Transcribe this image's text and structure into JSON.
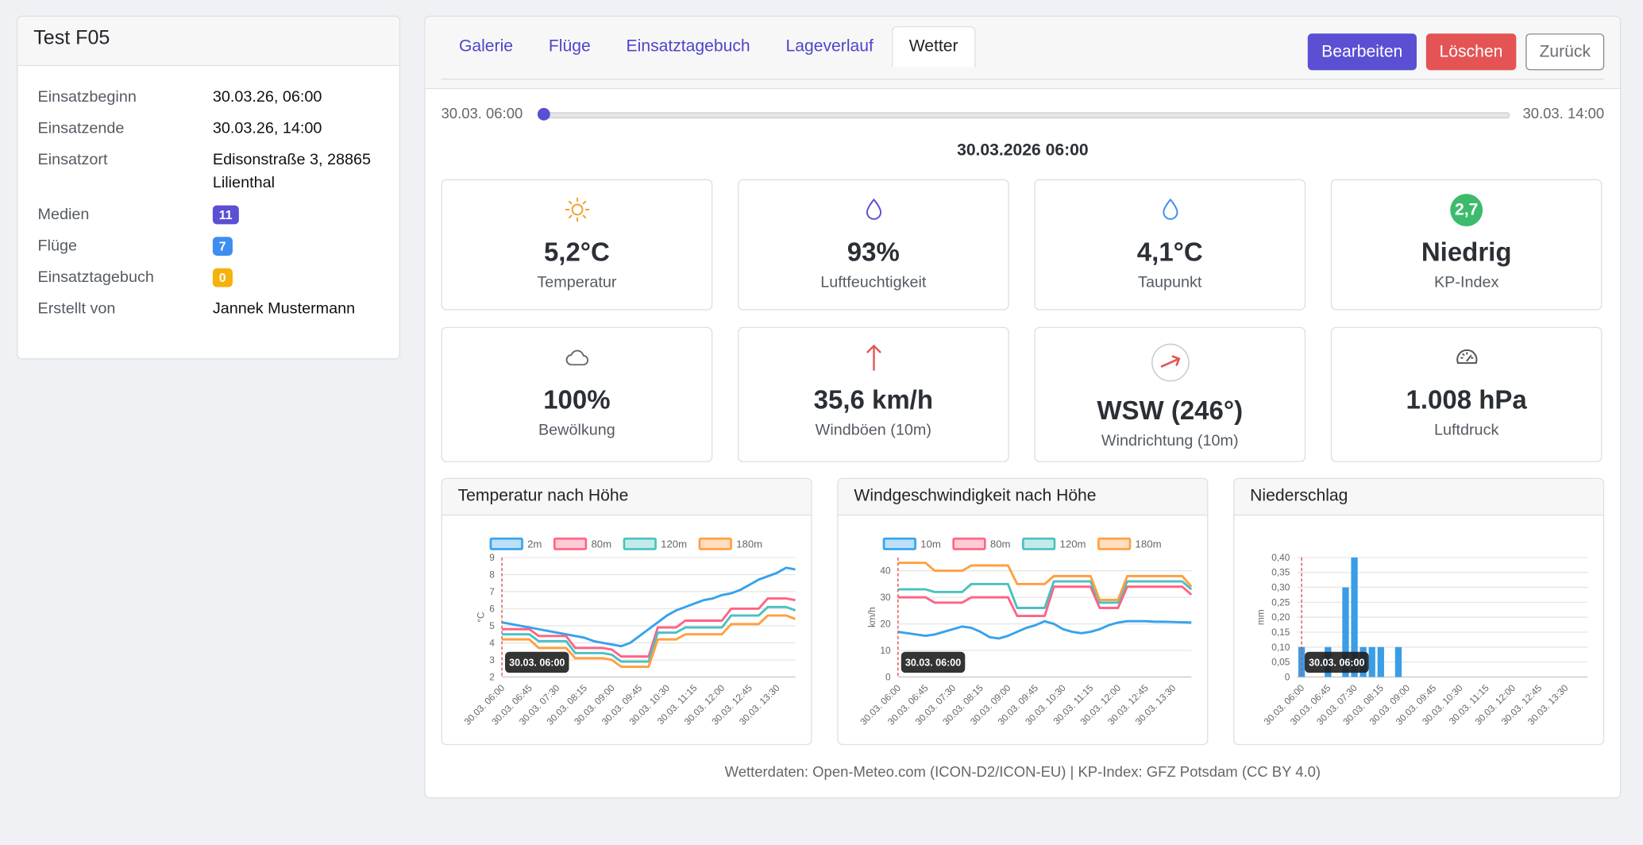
{
  "sidebar": {
    "title": "Test F05",
    "rows": [
      {
        "label": "Einsatzbeginn",
        "value": "30.03.26, 06:00"
      },
      {
        "label": "Einsatzende",
        "value": "30.03.26, 14:00"
      },
      {
        "label": "Einsatzort",
        "value": "Edisonstraße 3, 28865 Lilienthal"
      },
      {
        "label": "Medien",
        "value": 11,
        "badge": "#5b4fd4"
      },
      {
        "label": "Flüge",
        "value": 7,
        "badge": "#3d8ef0"
      },
      {
        "label": "Einsatztagebuch",
        "value": 0,
        "badge": "#f5b10c"
      },
      {
        "label": "Erstellt von",
        "value": "Jannek Mustermann"
      }
    ]
  },
  "tabs": {
    "items": [
      "Galerie",
      "Flüge",
      "Einsatztagebuch",
      "Lageverlauf",
      "Wetter"
    ],
    "active": 4
  },
  "buttons": [
    {
      "label": "Bearbeiten",
      "color": "#5b4fd4"
    },
    {
      "label": "Löschen",
      "color": "#e45454"
    },
    {
      "label": "Zurück"
    }
  ],
  "slider": {
    "start": "30.03. 06:00",
    "end": "30.03. 14:00"
  },
  "timestamp": "30.03.2026 06:00",
  "cards": [
    {
      "value": "5,2°C",
      "label": "Temperatur"
    },
    {
      "value": "93%",
      "label": "Luftfeuchtigkeit"
    },
    {
      "value": "4,1°C",
      "label": "Taupunkt"
    },
    {
      "badge": "2,7",
      "value": "Niedrig",
      "label": "KP-Index"
    },
    {
      "value": "100%",
      "label": "Bewölkung"
    },
    {
      "value": "35,6 km/h",
      "label": "Windböen (10m)"
    },
    {
      "value": "WSW (246°)",
      "label": "Windrichtung (10m)"
    },
    {
      "value": "1.008 hPa",
      "label": "Luftdruck"
    }
  ],
  "chart_data": [
    {
      "type": "line",
      "title": "Temperatur nach Höhe",
      "ylabel": "°C",
      "categories": [
        "30.03. 06:00",
        null,
        null,
        "30.03. 06:45",
        null,
        null,
        "30.03. 07:30",
        null,
        null,
        "30.03. 08:15",
        null,
        null,
        "30.03. 09:00",
        null,
        null,
        "30.03. 09:45",
        null,
        null,
        "30.03. 10:30",
        null,
        null,
        "30.03. 11:15",
        null,
        null,
        "30.03. 12:00",
        null,
        null,
        "30.03. 12:45",
        null,
        null,
        "30.03. 13:30",
        null,
        null
      ],
      "series": [
        {
          "name": "2m",
          "color": "#36a2eb",
          "values": [
            5.2,
            5.1,
            5.0,
            4.9,
            4.8,
            4.7,
            4.6,
            4.5,
            4.4,
            4.3,
            4.1,
            4.0,
            3.9,
            3.8,
            4.0,
            4.4,
            4.8,
            5.2,
            5.6,
            5.9,
            6.1,
            6.3,
            6.5,
            6.6,
            6.8,
            6.9,
            7.1,
            7.4,
            7.7,
            7.9,
            8.1,
            8.4,
            8.3
          ]
        },
        {
          "name": "80m",
          "color": "#ff6384",
          "values": [
            4.8,
            4.8,
            4.8,
            4.8,
            4.4,
            4.4,
            4.4,
            4.4,
            3.7,
            3.7,
            3.7,
            3.7,
            3.6,
            3.2,
            3.2,
            3.2,
            3.2,
            4.9,
            4.9,
            4.9,
            5.3,
            5.3,
            5.3,
            5.3,
            5.3,
            6.0,
            6.0,
            6.0,
            6.0,
            6.6,
            6.6,
            6.6,
            6.5
          ]
        },
        {
          "name": "120m",
          "color": "#4bc0c0",
          "values": [
            4.5,
            4.5,
            4.5,
            4.5,
            4.1,
            4.1,
            4.1,
            4.1,
            3.4,
            3.4,
            3.4,
            3.4,
            3.3,
            2.9,
            2.9,
            2.9,
            2.9,
            4.6,
            4.6,
            4.6,
            4.9,
            4.9,
            4.9,
            4.9,
            4.9,
            5.6,
            5.6,
            5.6,
            5.6,
            6.1,
            6.1,
            6.1,
            5.9
          ]
        },
        {
          "name": "180m",
          "color": "#ff9f40",
          "values": [
            4.2,
            4.2,
            4.2,
            4.2,
            3.7,
            3.7,
            3.7,
            3.7,
            3.1,
            3.1,
            3.1,
            3.1,
            3.0,
            2.6,
            2.6,
            2.6,
            2.6,
            4.2,
            4.2,
            4.2,
            4.5,
            4.5,
            4.5,
            4.5,
            4.5,
            5.1,
            5.1,
            5.1,
            5.1,
            5.6,
            5.6,
            5.6,
            5.4
          ]
        }
      ],
      "ylim": [
        2,
        9
      ],
      "yticks": [
        2,
        3,
        4,
        5,
        6,
        7,
        8,
        9
      ],
      "grid": true,
      "tooltip": "30.03. 06:00"
    },
    {
      "type": "line",
      "title": "Windgeschwindigkeit nach Höhe",
      "ylabel": "km/h",
      "categories": [
        "30.03. 06:00",
        null,
        null,
        "30.03. 06:45",
        null,
        null,
        "30.03. 07:30",
        null,
        null,
        "30.03. 08:15",
        null,
        null,
        "30.03. 09:00",
        null,
        null,
        "30.03. 09:45",
        null,
        null,
        "30.03. 10:30",
        null,
        null,
        "30.03. 11:15",
        null,
        null,
        "30.03. 12:00",
        null,
        null,
        "30.03. 12:45",
        null,
        null,
        "30.03. 13:30",
        null,
        null
      ],
      "series": [
        {
          "name": "10m",
          "color": "#36a2eb",
          "values": [
            17,
            16.5,
            16,
            15.5,
            16,
            17,
            18,
            19,
            18.5,
            17,
            15,
            14.5,
            15.5,
            17,
            18.5,
            19.5,
            21,
            20,
            18,
            17,
            16.5,
            17,
            18,
            19.5,
            20.5,
            21,
            21,
            21,
            20.8,
            20.8,
            20.7,
            20.6,
            20.5
          ]
        },
        {
          "name": "80m",
          "color": "#ff6384",
          "values": [
            30,
            30,
            30,
            30,
            28,
            28,
            28,
            28,
            30,
            30,
            30,
            30,
            30,
            23,
            23,
            23,
            23,
            34,
            34,
            34,
            34,
            34,
            26,
            26,
            26,
            34,
            34,
            34,
            34,
            34,
            34,
            34,
            31
          ]
        },
        {
          "name": "120m",
          "color": "#4bc0c0",
          "values": [
            33,
            33,
            33,
            33,
            32,
            32,
            32,
            32,
            35,
            35,
            35,
            35,
            35,
            26,
            26,
            26,
            26,
            36,
            36,
            36,
            36,
            36,
            28,
            28,
            28,
            36,
            36,
            36,
            36,
            36,
            36,
            36,
            33
          ]
        },
        {
          "name": "180m",
          "color": "#ff9f40",
          "values": [
            43,
            43,
            43,
            43,
            40,
            40,
            40,
            40,
            42,
            42,
            42,
            42,
            42,
            35,
            35,
            35,
            35,
            38,
            38,
            38,
            38,
            38,
            29,
            29,
            29,
            38,
            38,
            38,
            38,
            38,
            38,
            38,
            34
          ]
        }
      ],
      "ylim": [
        0,
        45
      ],
      "yticks": [
        0,
        10,
        20,
        30,
        40
      ],
      "grid": true,
      "tooltip": "30.03. 06:00"
    },
    {
      "type": "bar",
      "title": "Niederschlag",
      "ylabel": "mm",
      "categories": [
        "30.03. 06:00",
        null,
        null,
        "30.03. 06:45",
        null,
        null,
        "30.03. 07:30",
        null,
        null,
        "30.03. 08:15",
        null,
        null,
        "30.03. 09:00",
        null,
        null,
        "30.03. 09:45",
        null,
        null,
        "30.03. 10:30",
        null,
        null,
        "30.03. 11:15",
        null,
        null,
        "30.03. 12:00",
        null,
        null,
        "30.03. 12:45",
        null,
        null,
        "30.03. 13:30",
        null,
        null
      ],
      "values": [
        0.1,
        0,
        0,
        0.1,
        0,
        0.3,
        0.4,
        0.1,
        0.1,
        0.1,
        0,
        0.1,
        0,
        0,
        0,
        0,
        0,
        0,
        0,
        0,
        0,
        0,
        0,
        0,
        0,
        0,
        0,
        0,
        0,
        0,
        0,
        0,
        0
      ],
      "color": "#3a9de6",
      "ylim": [
        0,
        0.4
      ],
      "yticks": [
        0,
        {
          "value": 0.05,
          "label": "0,05"
        },
        {
          "value": 0.1,
          "label": "0,10"
        },
        {
          "value": 0.15,
          "label": "0,15"
        },
        {
          "value": 0.2,
          "label": "0,20"
        },
        {
          "value": 0.25,
          "label": "0,25"
        },
        {
          "value": 0.3,
          "label": "0,30"
        },
        {
          "value": 0.35,
          "label": "0,35"
        },
        {
          "value": 0.4,
          "label": "0,40"
        }
      ],
      "grid": true,
      "tooltip": "30.03. 06:00"
    }
  ],
  "footer": "Wetterdaten: Open-Meteo.com (ICON-D2/ICON-EU) | KP-Index: GFZ Potsdam (CC BY 4.0)"
}
